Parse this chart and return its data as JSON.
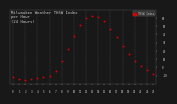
{
  "title_line1": "Milwaukee Weather THSW Index",
  "title_line2": "per Hour",
  "title_line3": "(24 Hours)",
  "title_fontsize": 2.8,
  "background_color": "#181818",
  "plot_bg_color": "#181818",
  "grid_color": "#555555",
  "dot_color": "#dd0000",
  "dot_size": 1.8,
  "hours": [
    0,
    1,
    2,
    3,
    4,
    5,
    6,
    7,
    8,
    9,
    10,
    11,
    12,
    13,
    14,
    15,
    16,
    17,
    18,
    19,
    20,
    21,
    22,
    23
  ],
  "values": [
    -12,
    -14,
    -15,
    -14,
    -13,
    -12,
    -10,
    -4,
    8,
    22,
    38,
    52,
    60,
    63,
    61,
    56,
    47,
    37,
    26,
    16,
    8,
    2,
    -3,
    -8
  ],
  "ylim": [
    -20,
    70
  ],
  "ytick_values": [
    -10,
    0,
    10,
    20,
    30,
    40,
    50,
    60
  ],
  "ytick_labels": [
    "-10",
    "0",
    "10",
    "20",
    "30",
    "40",
    "50",
    "60"
  ],
  "xtick_hours": [
    0,
    1,
    2,
    3,
    4,
    5,
    6,
    7,
    8,
    9,
    10,
    11,
    12,
    13,
    14,
    15,
    16,
    17,
    18,
    19,
    20,
    21,
    22,
    23
  ],
  "xtick_labels": [
    "0",
    "1",
    "2",
    "3",
    "4",
    "5",
    "6",
    "7",
    "8",
    "9",
    "10",
    "11",
    "12",
    "13",
    "14",
    "15",
    "16",
    "17",
    "18",
    "19",
    "20",
    "21",
    "22",
    "23"
  ],
  "legend_label": "THSW Index",
  "legend_color": "#dd0000",
  "text_color": "#cccccc",
  "tick_fontsize": 2.0,
  "vgrid_step": 2
}
